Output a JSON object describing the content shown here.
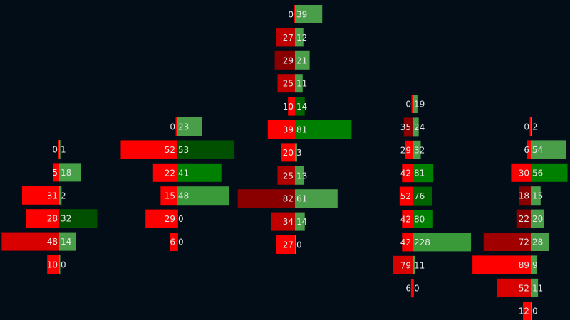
{
  "colors": {
    "background": "#020d18",
    "label": "#e6e6e6"
  },
  "chart_data": {
    "type": "bar",
    "columns": [
      {
        "rows": [
          {
            "sell": 0,
            "buy": 1,
            "sell_color": "#ff0000",
            "buy_color": "#4a9e4a"
          },
          {
            "sell": 5,
            "buy": 18,
            "sell_color": "#ff0000",
            "buy_color": "#46a046"
          },
          {
            "sell": 31,
            "buy": 2,
            "sell_color": "#ff0000",
            "buy_color": "#46a046"
          },
          {
            "sell": 28,
            "buy": 32,
            "sell_color": "#ff0000",
            "buy_color": "#005000"
          },
          {
            "sell": 48,
            "buy": 14,
            "sell_color": "#d90000",
            "buy_color": "#4a9e4a"
          },
          {
            "sell": 10,
            "buy": 0,
            "sell_color": "#ff0000",
            "buy_color": "#46a046"
          }
        ]
      },
      {
        "rows": [
          {
            "sell": 0,
            "buy": 23,
            "sell_color": "#ff0000",
            "buy_color": "#4a9e4a"
          },
          {
            "sell": 52,
            "buy": 53,
            "sell_color": "#ff0000",
            "buy_color": "#005000"
          },
          {
            "sell": 22,
            "buy": 41,
            "sell_color": "#ff0000",
            "buy_color": "#008000"
          },
          {
            "sell": 15,
            "buy": 48,
            "sell_color": "#ff0000",
            "buy_color": "#3a9a3a"
          },
          {
            "sell": 29,
            "buy": 0,
            "sell_color": "#ff0000",
            "buy_color": "#46a046"
          },
          {
            "sell": 6,
            "buy": 0,
            "sell_color": "#ff0000",
            "buy_color": "#46a046"
          }
        ]
      },
      {
        "rows": [
          {
            "sell": 0,
            "buy": 39,
            "sell_color": "#ff0000",
            "buy_color": "#4a9e4a"
          },
          {
            "sell": 27,
            "buy": 12,
            "sell_color": "#c00000",
            "buy_color": "#4a9e4a"
          },
          {
            "sell": 29,
            "buy": 21,
            "sell_color": "#8a0000",
            "buy_color": "#4a9e4a"
          },
          {
            "sell": 25,
            "buy": 11,
            "sell_color": "#c00000",
            "buy_color": "#4a9e4a"
          },
          {
            "sell": 10,
            "buy": 14,
            "sell_color": "#ff0000",
            "buy_color": "#006400"
          },
          {
            "sell": 39,
            "buy": 81,
            "sell_color": "#ff0000",
            "buy_color": "#008000"
          },
          {
            "sell": 20,
            "buy": 3,
            "sell_color": "#ff0000",
            "buy_color": "#4a9e4a"
          },
          {
            "sell": 25,
            "buy": 13,
            "sell_color": "#b00000",
            "buy_color": "#4a9e4a"
          },
          {
            "sell": 82,
            "buy": 61,
            "sell_color": "#8a0000",
            "buy_color": "#4a9e4a"
          },
          {
            "sell": 34,
            "buy": 14,
            "sell_color": "#c00000",
            "buy_color": "#4a9e4a"
          },
          {
            "sell": 27,
            "buy": 0,
            "sell_color": "#ff0000",
            "buy_color": "#46a046"
          }
        ]
      },
      {
        "rows": [
          {
            "sell": 0,
            "buy": 19,
            "sell_color": "#ff0000",
            "buy_color": "#4a9e4a"
          },
          {
            "sell": 35,
            "buy": 24,
            "sell_color": "#8a0000",
            "buy_color": "#4a9e4a"
          },
          {
            "sell": 29,
            "buy": 32,
            "sell_color": "#ff0000",
            "buy_color": "#4a9e4a"
          },
          {
            "sell": 42,
            "buy": 81,
            "sell_color": "#ff0000",
            "buy_color": "#008000"
          },
          {
            "sell": 52,
            "buy": 76,
            "sell_color": "#ff0000",
            "buy_color": "#006400"
          },
          {
            "sell": 42,
            "buy": 80,
            "sell_color": "#ff0000",
            "buy_color": "#008000"
          },
          {
            "sell": 42,
            "buy": 228,
            "sell_color": "#ff0000",
            "buy_color": "#3a9a3a"
          },
          {
            "sell": 79,
            "buy": 11,
            "sell_color": "#d90000",
            "buy_color": "#4a9e4a"
          },
          {
            "sell": 6,
            "buy": 0,
            "sell_color": "#ff0000",
            "buy_color": "#46a046"
          }
        ]
      },
      {
        "rows": [
          {
            "sell": 0,
            "buy": 2,
            "sell_color": "#ff0000",
            "buy_color": "#4a9e4a"
          },
          {
            "sell": 6,
            "buy": 54,
            "sell_color": "#ff0000",
            "buy_color": "#4a9e4a"
          },
          {
            "sell": 30,
            "buy": 56,
            "sell_color": "#ff0000",
            "buy_color": "#008000"
          },
          {
            "sell": 18,
            "buy": 15,
            "sell_color": "#8a0000",
            "buy_color": "#4a9e4a"
          },
          {
            "sell": 22,
            "buy": 20,
            "sell_color": "#8a0000",
            "buy_color": "#4a9e4a"
          },
          {
            "sell": 72,
            "buy": 28,
            "sell_color": "#a00000",
            "buy_color": "#4a9e4a"
          },
          {
            "sell": 89,
            "buy": 9,
            "sell_color": "#ff0000",
            "buy_color": "#4a9e4a"
          },
          {
            "sell": 52,
            "buy": 11,
            "sell_color": "#d90000",
            "buy_color": "#4a9e4a"
          },
          {
            "sell": 12,
            "buy": 0,
            "sell_color": "#ff0000",
            "buy_color": "#46a046"
          }
        ]
      }
    ]
  }
}
